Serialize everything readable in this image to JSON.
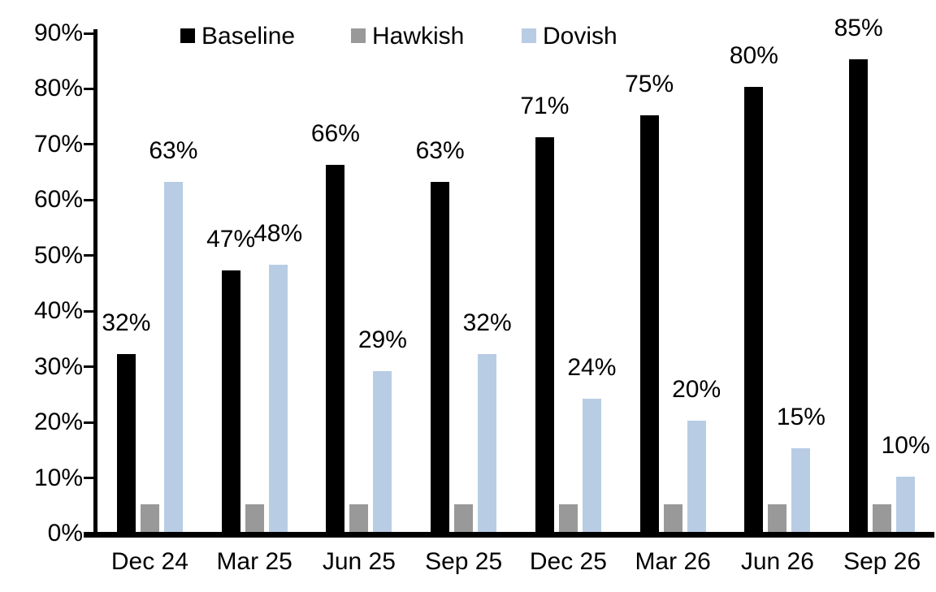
{
  "chart_data": {
    "type": "bar",
    "title": "",
    "xlabel": "",
    "ylabel": "",
    "categories": [
      "Dec 24",
      "Mar 25",
      "Jun 25",
      "Sep 25",
      "Dec 25",
      "Mar 26",
      "Jun 26",
      "Sep 26"
    ],
    "series": [
      {
        "name": "Baseline",
        "color": "#000000",
        "values": [
          32,
          47,
          66,
          63,
          71,
          75,
          80,
          85
        ],
        "labels": [
          "32%",
          "47%",
          "66%",
          "63%",
          "71%",
          "75%",
          "80%",
          "85%"
        ]
      },
      {
        "name": "Hawkish",
        "color": "#999999",
        "values": [
          5,
          5,
          5,
          5,
          5,
          5,
          5,
          5
        ],
        "labels": null
      },
      {
        "name": "Dovish",
        "color": "#B8CCE4",
        "values": [
          63,
          48,
          29,
          32,
          24,
          20,
          15,
          10
        ],
        "labels": [
          "63%",
          "48%",
          "29%",
          "32%",
          "24%",
          "20%",
          "15%",
          "10%"
        ]
      }
    ],
    "ylim": [
      0,
      90
    ],
    "ytick_step": 10,
    "ytick_labels": [
      "0%",
      "10%",
      "20%",
      "30%",
      "40%",
      "50%",
      "60%",
      "70%",
      "80%",
      "90%"
    ],
    "grid": false,
    "legend_position": "top",
    "axis_color": "#000000",
    "background_color": "#FFFFFF"
  }
}
